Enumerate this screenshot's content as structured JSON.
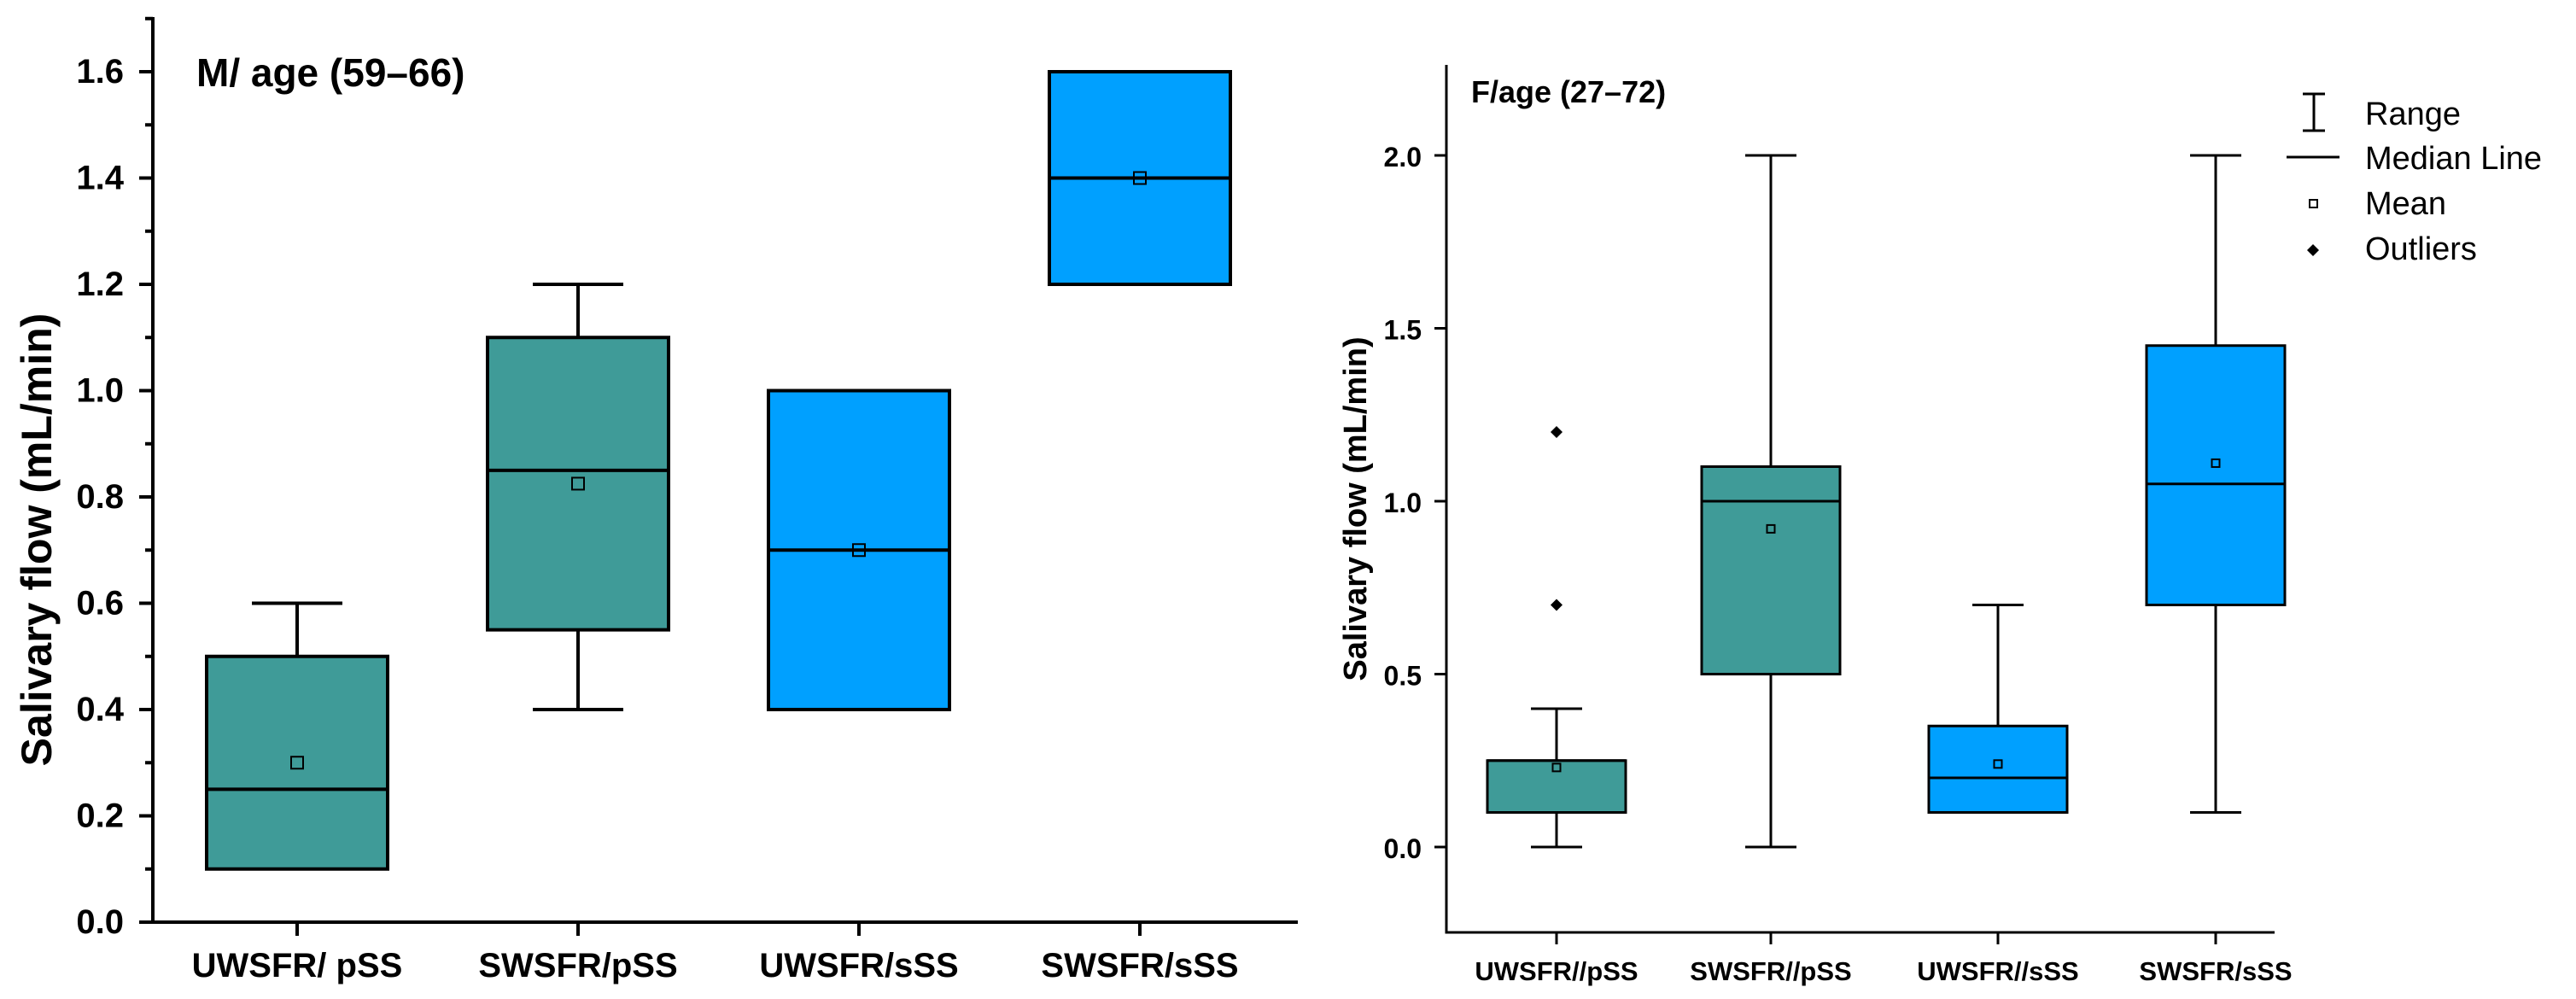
{
  "chart_data": [
    {
      "type": "box",
      "title": "M/ age (59–66)",
      "ylabel": "Salivary flow (mL/min)",
      "xlabel": "",
      "ylim": [
        0.0,
        1.7
      ],
      "yticks": [
        0.0,
        0.2,
        0.4,
        0.6,
        0.8,
        1.0,
        1.2,
        1.4,
        1.6
      ],
      "ytick_labels": [
        "0.0",
        "0.2",
        "0.4",
        "0.6",
        "0.8",
        "1.0",
        "1.2",
        "1.4",
        "1.6"
      ],
      "categories": [
        "UWSFR/ pSS",
        "SWSFR/pSS",
        "UWSFR/sSS",
        "SWSFR/sSS"
      ],
      "boxes": [
        {
          "category": "UWSFR/ pSS",
          "min": 0.1,
          "q1": 0.1,
          "median": 0.25,
          "q3": 0.5,
          "max": 0.6,
          "mean": 0.3,
          "outliers": [],
          "color": "#3f9b98"
        },
        {
          "category": "SWSFR/pSS",
          "min": 0.4,
          "q1": 0.55,
          "median": 0.85,
          "q3": 1.1,
          "max": 1.2,
          "mean": 0.825,
          "outliers": [],
          "color": "#3f9b98"
        },
        {
          "category": "UWSFR/sSS",
          "min": 0.4,
          "q1": 0.4,
          "median": 0.7,
          "q3": 1.0,
          "max": 1.0,
          "mean": 0.7,
          "outliers": [],
          "color": "#00a0ff"
        },
        {
          "category": "SWSFR/sSS",
          "min": 1.2,
          "q1": 1.2,
          "median": 1.4,
          "q3": 1.6,
          "max": 1.6,
          "mean": 1.4,
          "outliers": [],
          "color": "#00a0ff"
        }
      ]
    },
    {
      "type": "box",
      "title": "F/age (27–72)",
      "ylabel": "Salivary flow (mL/min)",
      "xlabel": "",
      "ylim": [
        -0.25,
        2.25
      ],
      "yticks": [
        0.0,
        0.5,
        1.0,
        1.5,
        2.0
      ],
      "ytick_labels": [
        "0.0",
        "0.5",
        "1.0",
        "1.5",
        "2.0"
      ],
      "categories": [
        "UWSFR//pSS",
        "SWSFR//pSS",
        "UWSFR//sSS",
        "SWSFR/sSS"
      ],
      "boxes": [
        {
          "category": "UWSFR//pSS",
          "min": 0.0,
          "q1": 0.1,
          "median": 0.25,
          "q3": 0.25,
          "max": 0.4,
          "mean": 0.23,
          "outliers": [
            0.7,
            1.2
          ],
          "color": "#3f9b98"
        },
        {
          "category": "SWSFR//pSS",
          "min": 0.0,
          "q1": 0.5,
          "median": 1.0,
          "q3": 1.1,
          "max": 2.0,
          "mean": 0.92,
          "outliers": [],
          "color": "#3f9b98"
        },
        {
          "category": "UWSFR//sSS",
          "min": 0.1,
          "q1": 0.1,
          "median": 0.2,
          "q3": 0.35,
          "max": 0.7,
          "mean": 0.24,
          "outliers": [],
          "color": "#00a0ff"
        },
        {
          "category": "SWSFR/sSS",
          "min": 0.1,
          "q1": 0.7,
          "median": 1.05,
          "q3": 1.45,
          "max": 2.0,
          "mean": 1.11,
          "outliers": [],
          "color": "#00a0ff"
        }
      ],
      "legend": {
        "position": "top-right",
        "entries": [
          "Range",
          "Median Line",
          "Mean",
          "Outliers"
        ]
      }
    }
  ]
}
